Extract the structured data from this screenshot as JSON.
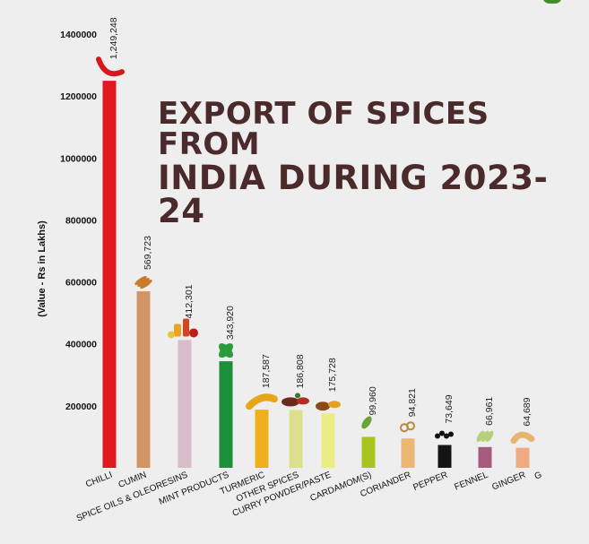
{
  "title": {
    "line1": "EXPORT OF SPICES FROM",
    "line2": "INDIA DURING 2023-24"
  },
  "chart_data": {
    "type": "bar",
    "ylabel": "(Value - Rs in Lakhs)",
    "ylim": [
      0,
      1400000
    ],
    "yticks": [
      {
        "value": 200000,
        "label": "200000"
      },
      {
        "value": 400000,
        "label": "400000"
      },
      {
        "value": 600000,
        "label": "600000"
      },
      {
        "value": 800000,
        "label": "800000"
      },
      {
        "value": 1000000,
        "label": "1000000"
      },
      {
        "value": 1200000,
        "label": "1200000"
      },
      {
        "value": 1400000,
        "label": "1400000"
      }
    ],
    "grid": false,
    "categories": [
      "CHILLI",
      "CUMIN",
      "SPICE OILS & OLEORESINS",
      "MINT PRODUCTS",
      "TURMERIC",
      "OTHER SPICES",
      "CURRY POWDER/PASTE",
      "CARDAMOM(S)",
      "CORIANDER",
      "PEPPER",
      "FENNEL",
      "GINGER",
      "G"
    ],
    "values": [
      1249248,
      569723,
      412301,
      343920,
      187587,
      186808,
      175728,
      99960,
      94821,
      73649,
      66961,
      64689,
      null
    ],
    "value_labels": [
      "1,249,248",
      "569,723",
      "412,301",
      "343,920",
      "187,587",
      "186,808",
      "175,728",
      "99,960",
      "94,821",
      "73,649",
      "66,961",
      "64,689",
      ""
    ],
    "colors": [
      "#e0191f",
      "#d49565",
      "#d9bccb",
      "#1b8f3a",
      "#efb01c",
      "#dde08a",
      "#ecec86",
      "#a7c51f",
      "#ecb773",
      "#151515",
      "#a55a7e",
      "#eeaa82",
      "#cccccc"
    ],
    "icons": [
      "chilli-icon",
      "cumin-icon",
      "spice-oils-icon",
      "mint-icon",
      "turmeric-icon",
      "other-spices-icon",
      "curry-powder-icon",
      "cardamom-icon",
      "coriander-icon",
      "pepper-icon",
      "fennel-icon",
      "ginger-icon",
      ""
    ]
  }
}
